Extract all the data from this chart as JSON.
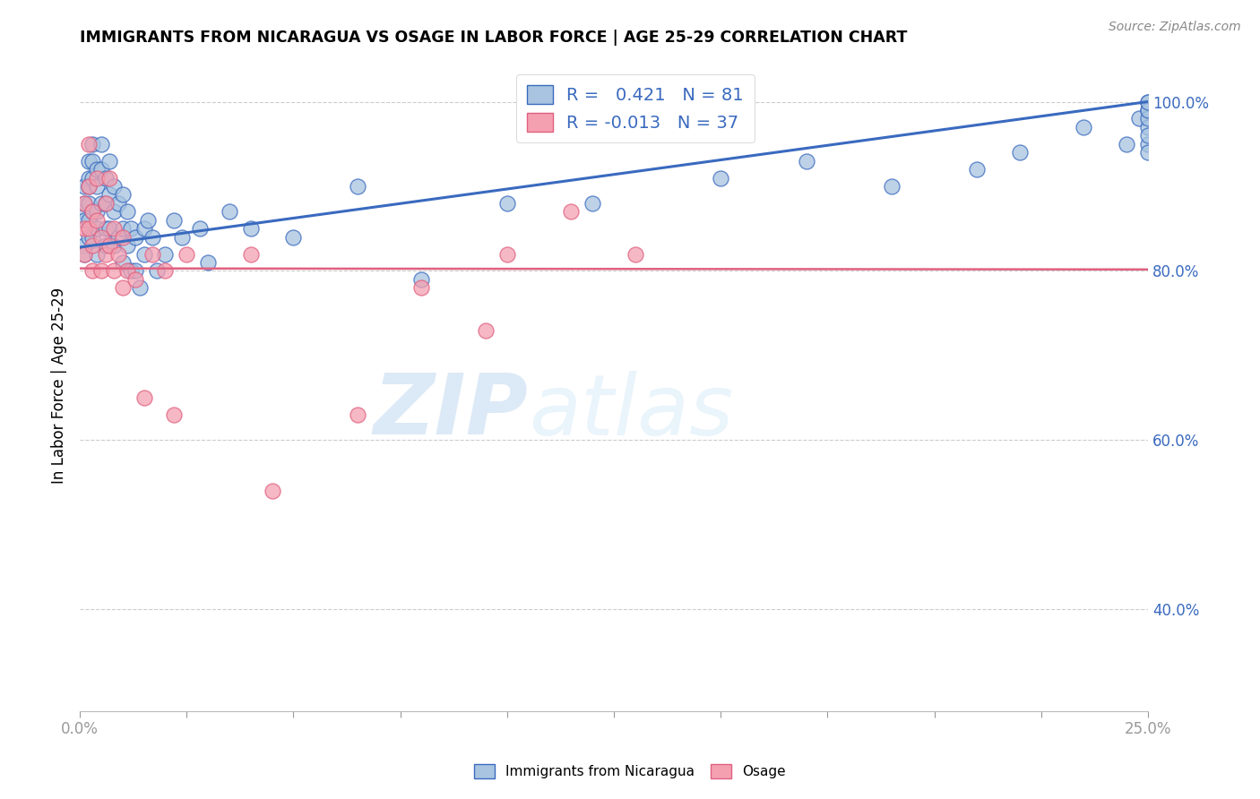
{
  "title": "IMMIGRANTS FROM NICARAGUA VS OSAGE IN LABOR FORCE | AGE 25-29 CORRELATION CHART",
  "source": "Source: ZipAtlas.com",
  "ylabel": "In Labor Force | Age 25-29",
  "xlim": [
    0.0,
    0.25
  ],
  "ylim": [
    0.28,
    1.05
  ],
  "xtick_positions": [
    0.0,
    0.025,
    0.05,
    0.075,
    0.1,
    0.125,
    0.15,
    0.175,
    0.2,
    0.225,
    0.25
  ],
  "yticks_right": [
    0.4,
    0.6,
    0.8,
    1.0
  ],
  "ytick_right_labels": [
    "40.0%",
    "60.0%",
    "80.0%",
    "100.0%"
  ],
  "blue_R": 0.421,
  "blue_N": 81,
  "pink_R": -0.013,
  "pink_N": 37,
  "blue_color": "#a8c4e0",
  "pink_color": "#f4a0b0",
  "blue_line_color": "#3a6abf",
  "pink_line_color": "#e06080",
  "legend_label_blue": "Immigrants from Nicaragua",
  "legend_label_pink": "Osage",
  "watermark_zip": "ZIP",
  "watermark_atlas": "atlas",
  "blue_x": [
    0.001,
    0.001,
    0.001,
    0.001,
    0.001,
    0.001,
    0.002,
    0.002,
    0.002,
    0.002,
    0.002,
    0.002,
    0.003,
    0.003,
    0.003,
    0.003,
    0.003,
    0.004,
    0.004,
    0.004,
    0.004,
    0.004,
    0.005,
    0.005,
    0.005,
    0.006,
    0.006,
    0.006,
    0.006,
    0.007,
    0.007,
    0.007,
    0.008,
    0.008,
    0.008,
    0.009,
    0.009,
    0.01,
    0.01,
    0.01,
    0.011,
    0.011,
    0.012,
    0.012,
    0.013,
    0.013,
    0.014,
    0.015,
    0.015,
    0.016,
    0.017,
    0.018,
    0.02,
    0.022,
    0.024,
    0.028,
    0.03,
    0.035,
    0.04,
    0.05,
    0.065,
    0.08,
    0.1,
    0.12,
    0.15,
    0.17,
    0.19,
    0.21,
    0.22,
    0.235,
    0.245,
    0.248,
    0.25,
    0.25,
    0.25,
    0.25,
    0.25,
    0.25,
    0.25,
    0.25,
    0.25
  ],
  "blue_y": [
    0.87,
    0.9,
    0.88,
    0.86,
    0.83,
    0.82,
    0.93,
    0.91,
    0.9,
    0.88,
    0.86,
    0.84,
    0.95,
    0.93,
    0.91,
    0.87,
    0.84,
    0.92,
    0.9,
    0.87,
    0.85,
    0.82,
    0.95,
    0.92,
    0.88,
    0.91,
    0.88,
    0.85,
    0.83,
    0.93,
    0.89,
    0.85,
    0.9,
    0.87,
    0.83,
    0.88,
    0.84,
    0.89,
    0.85,
    0.81,
    0.87,
    0.83,
    0.85,
    0.8,
    0.84,
    0.8,
    0.78,
    0.85,
    0.82,
    0.86,
    0.84,
    0.8,
    0.82,
    0.86,
    0.84,
    0.85,
    0.81,
    0.87,
    0.85,
    0.84,
    0.9,
    0.79,
    0.88,
    0.88,
    0.91,
    0.93,
    0.9,
    0.92,
    0.94,
    0.97,
    0.95,
    0.98,
    0.99,
    1.0,
    0.97,
    0.95,
    0.98,
    0.99,
    1.0,
    0.96,
    0.94
  ],
  "pink_x": [
    0.001,
    0.001,
    0.001,
    0.002,
    0.002,
    0.002,
    0.003,
    0.003,
    0.003,
    0.004,
    0.004,
    0.005,
    0.005,
    0.006,
    0.006,
    0.007,
    0.007,
    0.008,
    0.008,
    0.009,
    0.01,
    0.01,
    0.011,
    0.013,
    0.015,
    0.017,
    0.02,
    0.022,
    0.025,
    0.04,
    0.045,
    0.065,
    0.08,
    0.095,
    0.1,
    0.115,
    0.13
  ],
  "pink_y": [
    0.88,
    0.85,
    0.82,
    0.95,
    0.9,
    0.85,
    0.87,
    0.83,
    0.8,
    0.91,
    0.86,
    0.84,
    0.8,
    0.88,
    0.82,
    0.91,
    0.83,
    0.85,
    0.8,
    0.82,
    0.84,
    0.78,
    0.8,
    0.79,
    0.65,
    0.82,
    0.8,
    0.63,
    0.82,
    0.82,
    0.54,
    0.63,
    0.78,
    0.73,
    0.82,
    0.87,
    0.82
  ]
}
